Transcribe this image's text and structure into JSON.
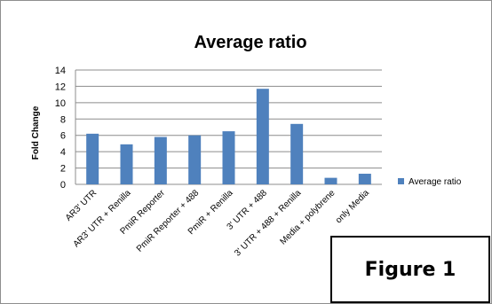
{
  "chart_data": {
    "type": "bar",
    "title": "Average ratio",
    "ylabel": "Fold Change",
    "xlabel": "",
    "categories": [
      "AR3' UTR",
      "AR3' UTR + Renilla",
      "PmiR Reporter",
      "PmiR Reporter + 488",
      "PmiR + Renilla",
      "3' UTR + 488",
      "3' UTR + 488 + Renilla",
      "Media + polybrene",
      "only Media"
    ],
    "series": [
      {
        "name": "Average ratio",
        "values": [
          6.2,
          4.9,
          5.8,
          6.0,
          6.5,
          11.7,
          7.4,
          0.8,
          1.3
        ]
      }
    ],
    "ylim": [
      0,
      14
    ],
    "yticks": [
      0,
      2,
      4,
      6,
      8,
      10,
      12,
      14
    ],
    "grid": true,
    "legend_position": "right",
    "colors": {
      "bar": "#4f81bd",
      "grid": "#8c8c8c"
    }
  },
  "figure_label": "Figure 1"
}
